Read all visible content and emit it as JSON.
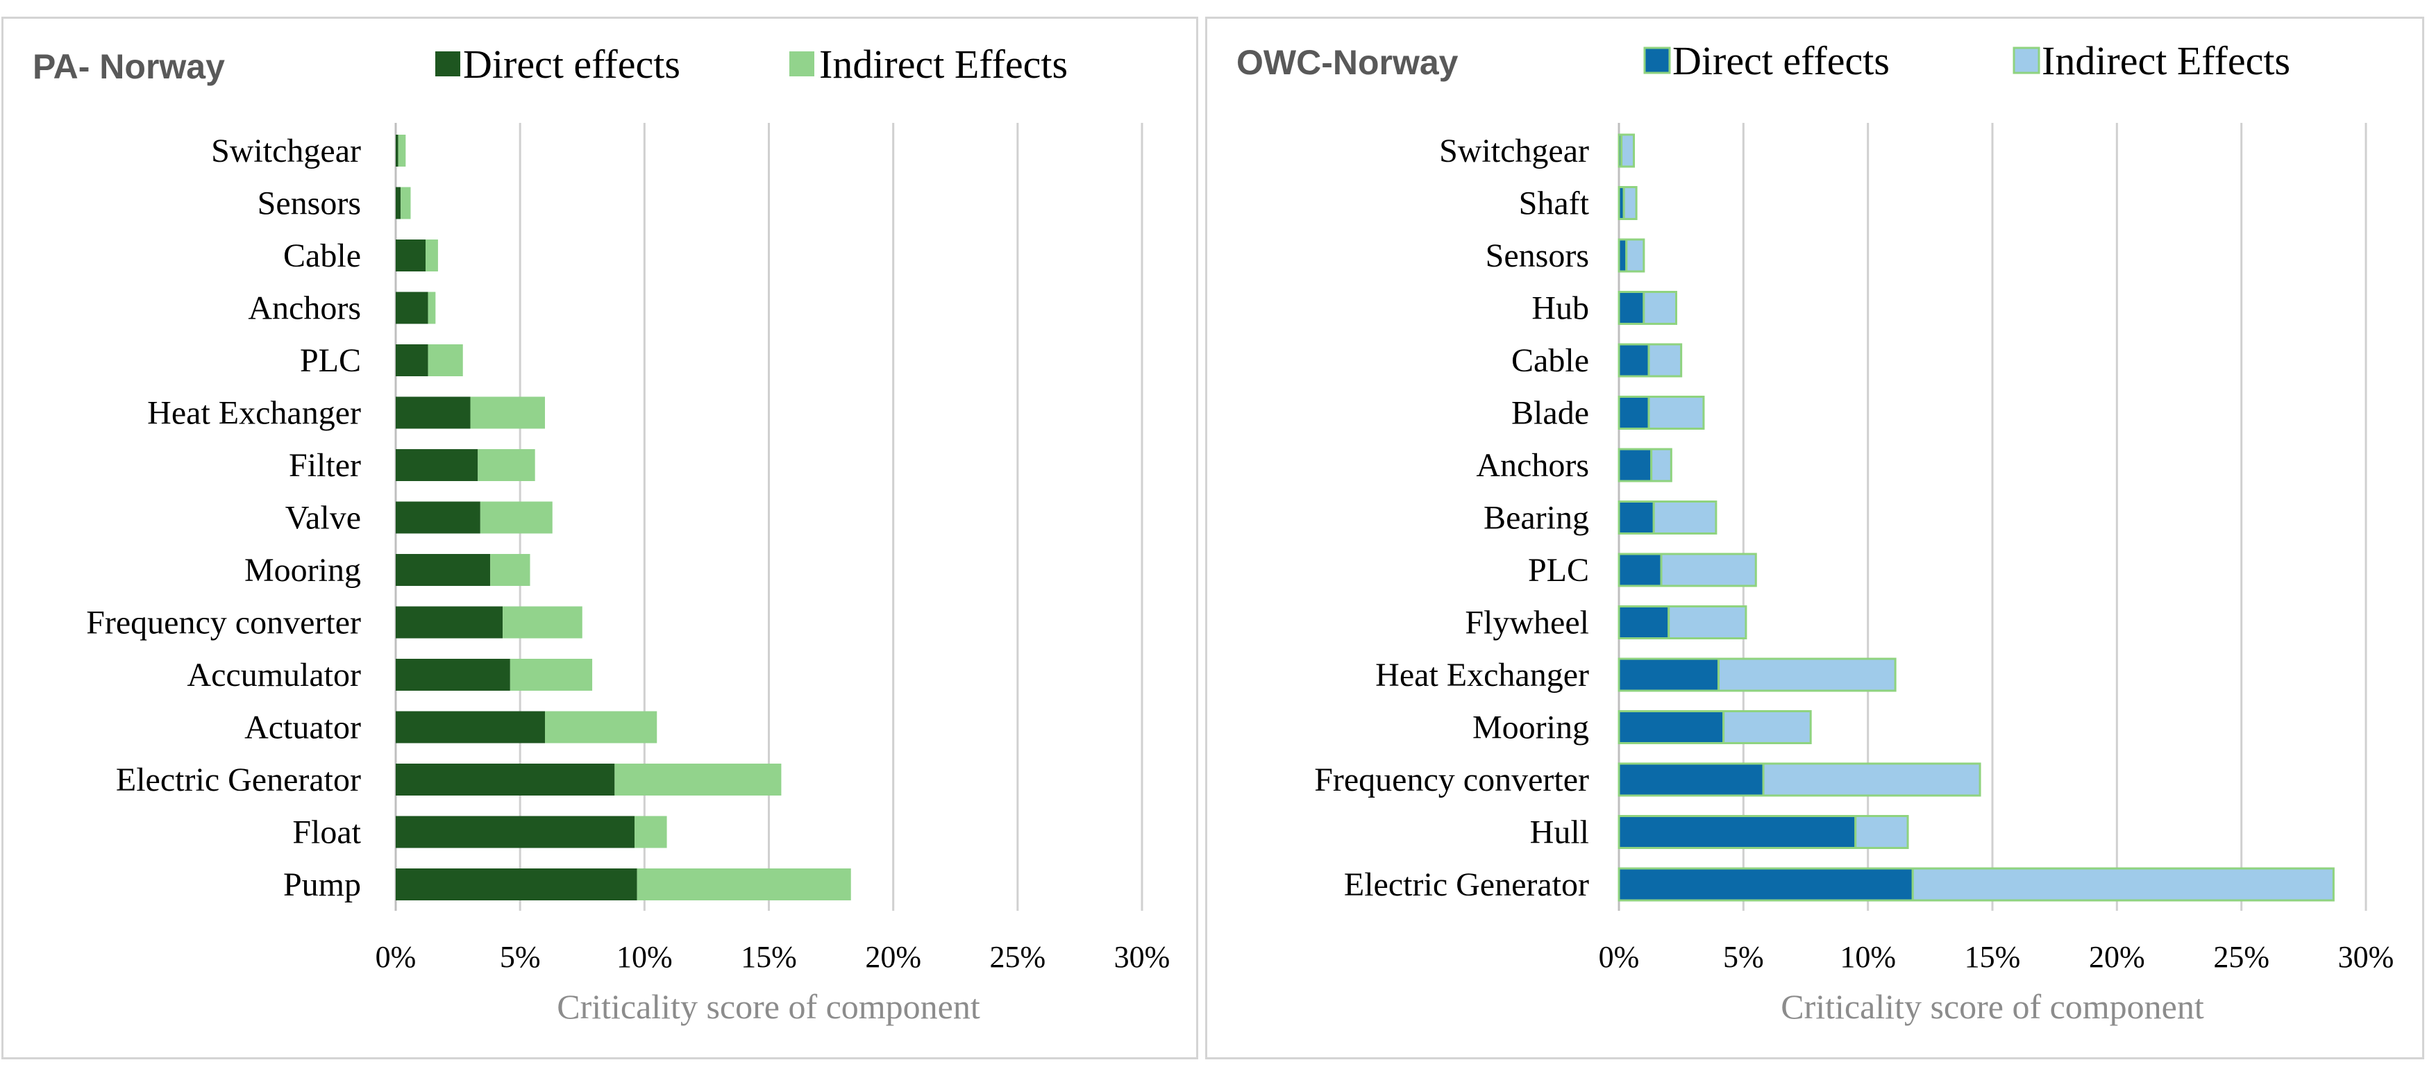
{
  "colors": {
    "pa_direct": "#1e5620",
    "pa_indirect": "#92d38c",
    "owc_direct": "#0b6aa8",
    "owc_indirect": "#9fcbea",
    "owc_border": "#8fd37f",
    "grid": "#d0d0d0"
  },
  "chart_data": [
    {
      "type": "bar",
      "orientation": "horizontal",
      "stacked": true,
      "title": "PA- Norway",
      "xlabel": "Criticality  score of component",
      "xlim": [
        0,
        0.3
      ],
      "xticks": [
        "0%",
        "5%",
        "10%",
        "15%",
        "20%",
        "25%",
        "30%"
      ],
      "legend_position": "top",
      "categories": [
        "Switchgear",
        "Sensors",
        "Cable",
        "Anchors",
        "PLC",
        "Heat Exchanger",
        "Filter",
        "Valve",
        "Mooring",
        "Frequency converter",
        "Accumulator",
        "Actuator",
        "Electric Generator",
        "Float",
        "Pump"
      ],
      "series": [
        {
          "name": "Direct effects",
          "values": [
            0.001,
            0.002,
            0.012,
            0.013,
            0.013,
            0.03,
            0.033,
            0.034,
            0.038,
            0.043,
            0.046,
            0.06,
            0.088,
            0.096,
            0.097
          ]
        },
        {
          "name": "Indirect Effects",
          "values": [
            0.003,
            0.004,
            0.005,
            0.003,
            0.014,
            0.03,
            0.023,
            0.029,
            0.016,
            0.032,
            0.033,
            0.045,
            0.067,
            0.013,
            0.086
          ]
        }
      ]
    },
    {
      "type": "bar",
      "orientation": "horizontal",
      "stacked": true,
      "title": "OWC-Norway",
      "xlabel": "Criticality  score of component",
      "xlim": [
        0,
        0.3
      ],
      "xticks": [
        "0%",
        "5%",
        "10%",
        "15%",
        "20%",
        "25%",
        "30%"
      ],
      "legend_position": "top",
      "categories": [
        "Switchgear",
        "Shaft",
        "Sensors",
        "Hub",
        "Cable",
        "Blade",
        "Anchors",
        "Bearing",
        "PLC",
        "Flywheel",
        "Heat Exchanger",
        "Mooring",
        "Frequency converter",
        "Hull",
        "Electric Generator"
      ],
      "series": [
        {
          "name": "Direct effects",
          "values": [
            0.001,
            0.002,
            0.003,
            0.01,
            0.012,
            0.012,
            0.013,
            0.014,
            0.017,
            0.02,
            0.04,
            0.042,
            0.058,
            0.095,
            0.118
          ]
        },
        {
          "name": "Indirect Effects",
          "values": [
            0.005,
            0.005,
            0.007,
            0.013,
            0.013,
            0.022,
            0.008,
            0.025,
            0.038,
            0.031,
            0.071,
            0.035,
            0.087,
            0.021,
            0.169
          ]
        }
      ]
    }
  ]
}
